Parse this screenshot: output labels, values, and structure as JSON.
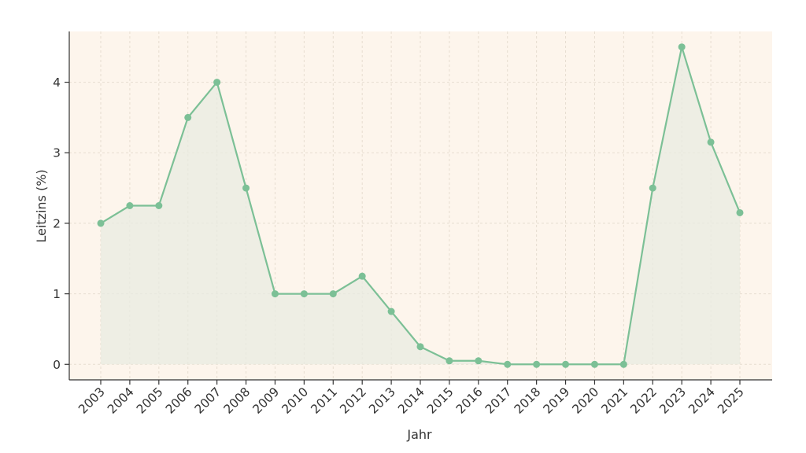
{
  "chart_data": {
    "type": "line",
    "title": "",
    "xlabel": "Jahr",
    "ylabel": "Leitzins (%)",
    "x": [
      "2003",
      "2004",
      "2005",
      "2006",
      "2007",
      "2008",
      "2009",
      "2010",
      "2011",
      "2012",
      "2013",
      "2014",
      "2015",
      "2016",
      "2017",
      "2018",
      "2019",
      "2020",
      "2021",
      "2022",
      "2023",
      "2024",
      "2025"
    ],
    "series": [
      {
        "values": [
          2.0,
          2.25,
          2.25,
          3.5,
          4.0,
          2.5,
          1.0,
          1.0,
          1.0,
          1.25,
          0.75,
          0.25,
          0.05,
          0.05,
          0.0,
          0.0,
          0.0,
          0.0,
          0.0,
          2.5,
          4.5,
          3.15,
          2.15
        ],
        "color": "#7cc096"
      }
    ],
    "yticks": [
      0,
      1,
      2,
      3,
      4
    ],
    "ylim": [
      -0.22,
      4.72
    ],
    "grid": true,
    "area_fill": true,
    "colors": {
      "plot_background": "#fdf5ec",
      "area_fill": "#e8ebe1",
      "line": "#7cc096",
      "axis": "#333333"
    }
  }
}
